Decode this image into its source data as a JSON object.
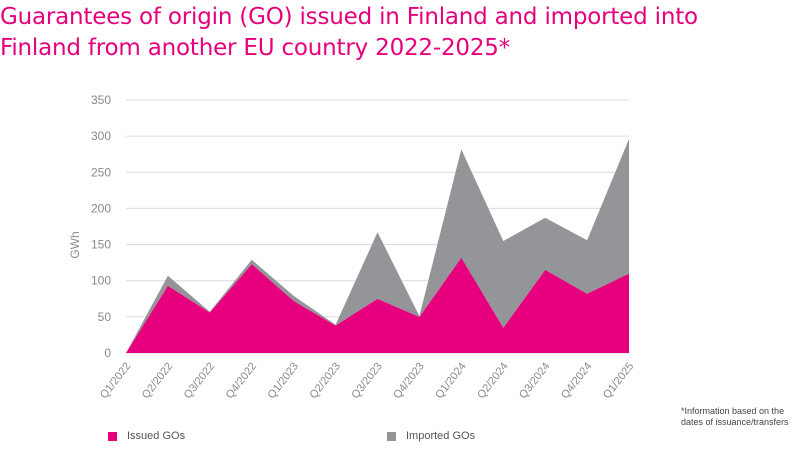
{
  "title": "Guarantees of origin (GO) issued in Finland and imported into\nFinland from another EU country 2022-2025*",
  "footnote": "*Information based on the dates of issuance/transfers",
  "colors": {
    "title": "#e6007e",
    "issued": "#e6007e",
    "imported": "#939598",
    "grid": "#dcdcdc",
    "tick_text": "#8a8a8a"
  },
  "chart_data": {
    "type": "area",
    "stacked": true,
    "title": "Guarantees of origin (GO) issued in Finland and imported into Finland from another EU country 2022-2025*",
    "ylabel": "GWh",
    "xlabel": "",
    "ylim": [
      0,
      350
    ],
    "yticks": [
      0,
      50,
      100,
      150,
      200,
      250,
      300,
      350
    ],
    "grid": true,
    "legend_position": "bottom",
    "categories": [
      "Q1/2022",
      "Q2/2022",
      "Q3/2022",
      "Q4/2022",
      "Q1/2023",
      "Q2/2023",
      "Q3/2023",
      "Q4/2023",
      "Q1/2024",
      "Q2/2024",
      "Q3/2024",
      "Q4/2024",
      "Q1/2025"
    ],
    "series": [
      {
        "name": "Issued GOs",
        "color": "#e6007e",
        "values": [
          0,
          93,
          56,
          123,
          72,
          38,
          75,
          50,
          132,
          35,
          115,
          82,
          110
        ]
      },
      {
        "name": "Imported GOs",
        "color": "#939598",
        "values": [
          0,
          14,
          1,
          6,
          7,
          1,
          92,
          1,
          150,
          120,
          72,
          74,
          186
        ]
      }
    ]
  }
}
